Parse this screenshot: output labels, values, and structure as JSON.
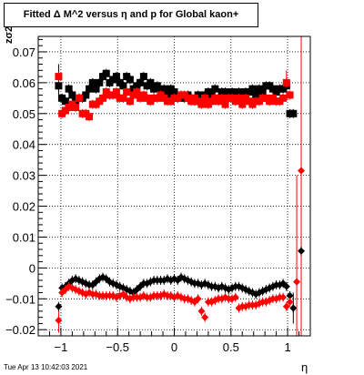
{
  "title": "Fitted Δ M^2 versus η and p for Global kaon+",
  "timestamp": "Tue Apr 13 10:42:03 2021",
  "chart_data": {
    "type": "scatter",
    "title": "Fitted Δ M^2 versus η and p for Global kaon+",
    "xlabel": "η",
    "ylabel": "zσ2",
    "xlim": [
      -1.2,
      1.2
    ],
    "ylim": [
      -0.022,
      0.075
    ],
    "grid": true,
    "xticks": [
      -1,
      -0.5,
      0,
      0.5,
      1
    ],
    "xtick_labels": [
      "−1",
      "−0.5",
      "0",
      "0.5",
      "1"
    ],
    "yticks": [
      -0.02,
      -0.01,
      0,
      0.01,
      0.02,
      0.03,
      0.04,
      0.05,
      0.06,
      0.07
    ],
    "ytick_labels": [
      "−0.02",
      "−0.01",
      "0",
      "0.01",
      "0.02",
      "0.03",
      "0.04",
      "0.05",
      "0.06",
      "0.07"
    ],
    "series": [
      {
        "marker": "square",
        "color": "#000000",
        "points": [
          [
            -1.02,
            0.059
          ],
          [
            -0.99,
            0.055
          ],
          [
            -0.96,
            0.054
          ],
          [
            -0.93,
            0.058
          ],
          [
            -0.9,
            0.056
          ],
          [
            -0.87,
            0.054
          ],
          [
            -0.84,
            0.055
          ],
          [
            -0.81,
            0.055
          ],
          [
            -0.78,
            0.056
          ],
          [
            -0.75,
            0.058
          ],
          [
            -0.72,
            0.06
          ],
          [
            -0.69,
            0.058
          ],
          [
            -0.66,
            0.06
          ],
          [
            -0.63,
            0.062
          ],
          [
            -0.6,
            0.063
          ],
          [
            -0.57,
            0.06
          ],
          [
            -0.54,
            0.061
          ],
          [
            -0.51,
            0.062
          ],
          [
            -0.48,
            0.06
          ],
          [
            -0.45,
            0.059
          ],
          [
            -0.42,
            0.062
          ],
          [
            -0.39,
            0.061
          ],
          [
            -0.36,
            0.058
          ],
          [
            -0.33,
            0.059
          ],
          [
            -0.3,
            0.06
          ],
          [
            -0.27,
            0.062
          ],
          [
            -0.24,
            0.059
          ],
          [
            -0.21,
            0.06
          ],
          [
            -0.18,
            0.058
          ],
          [
            -0.15,
            0.059
          ],
          [
            -0.12,
            0.057
          ],
          [
            -0.09,
            0.058
          ],
          [
            -0.06,
            0.056
          ],
          [
            -0.03,
            0.058
          ],
          [
            0.0,
            0.057
          ],
          [
            0.03,
            0.055
          ],
          [
            0.06,
            0.056
          ],
          [
            0.09,
            0.055
          ],
          [
            0.12,
            0.056
          ],
          [
            0.15,
            0.055
          ],
          [
            0.18,
            0.054
          ],
          [
            0.21,
            0.056
          ],
          [
            0.24,
            0.055
          ],
          [
            0.27,
            0.056
          ],
          [
            0.3,
            0.057
          ],
          [
            0.33,
            0.056
          ],
          [
            0.36,
            0.058
          ],
          [
            0.39,
            0.055
          ],
          [
            0.42,
            0.057
          ],
          [
            0.45,
            0.057
          ],
          [
            0.48,
            0.056
          ],
          [
            0.51,
            0.057
          ],
          [
            0.54,
            0.056
          ],
          [
            0.57,
            0.057
          ],
          [
            0.6,
            0.056
          ],
          [
            0.63,
            0.057
          ],
          [
            0.66,
            0.057
          ],
          [
            0.69,
            0.058
          ],
          [
            0.72,
            0.056
          ],
          [
            0.75,
            0.058
          ],
          [
            0.78,
            0.057
          ],
          [
            0.81,
            0.059
          ],
          [
            0.84,
            0.059
          ],
          [
            0.87,
            0.058
          ],
          [
            0.9,
            0.057
          ],
          [
            0.93,
            0.058
          ],
          [
            0.96,
            0.058
          ],
          [
            0.99,
            0.059
          ],
          [
            1.02,
            0.05
          ],
          [
            1.05,
            0.05
          ]
        ]
      },
      {
        "marker": "square",
        "color": "#ff0000",
        "points": [
          [
            -1.02,
            0.062
          ],
          [
            -0.99,
            0.05
          ],
          [
            -0.96,
            0.051
          ],
          [
            -0.93,
            0.052
          ],
          [
            -0.9,
            0.053
          ],
          [
            -0.87,
            0.052
          ],
          [
            -0.84,
            0.055
          ],
          [
            -0.81,
            0.05
          ],
          [
            -0.78,
            0.05
          ],
          [
            -0.75,
            0.049
          ],
          [
            -0.72,
            0.053
          ],
          [
            -0.69,
            0.053
          ],
          [
            -0.66,
            0.054
          ],
          [
            -0.63,
            0.055
          ],
          [
            -0.6,
            0.057
          ],
          [
            -0.57,
            0.056
          ],
          [
            -0.54,
            0.056
          ],
          [
            -0.51,
            0.057
          ],
          [
            -0.48,
            0.055
          ],
          [
            -0.45,
            0.055
          ],
          [
            -0.42,
            0.057
          ],
          [
            -0.39,
            0.054
          ],
          [
            -0.36,
            0.056
          ],
          [
            -0.33,
            0.057
          ],
          [
            -0.3,
            0.055
          ],
          [
            -0.27,
            0.056
          ],
          [
            -0.24,
            0.055
          ],
          [
            -0.21,
            0.054
          ],
          [
            -0.18,
            0.055
          ],
          [
            -0.15,
            0.055
          ],
          [
            -0.12,
            0.056
          ],
          [
            -0.09,
            0.055
          ],
          [
            -0.06,
            0.054
          ],
          [
            -0.03,
            0.054
          ],
          [
            0.0,
            0.055
          ],
          [
            0.03,
            0.055
          ],
          [
            0.06,
            0.056
          ],
          [
            0.09,
            0.056
          ],
          [
            0.12,
            0.055
          ],
          [
            0.15,
            0.054
          ],
          [
            0.18,
            0.055
          ],
          [
            0.21,
            0.054
          ],
          [
            0.24,
            0.053
          ],
          [
            0.27,
            0.055
          ],
          [
            0.3,
            0.053
          ],
          [
            0.33,
            0.054
          ],
          [
            0.36,
            0.055
          ],
          [
            0.39,
            0.054
          ],
          [
            0.42,
            0.055
          ],
          [
            0.45,
            0.053
          ],
          [
            0.48,
            0.055
          ],
          [
            0.51,
            0.055
          ],
          [
            0.54,
            0.054
          ],
          [
            0.57,
            0.055
          ],
          [
            0.6,
            0.053
          ],
          [
            0.63,
            0.055
          ],
          [
            0.66,
            0.054
          ],
          [
            0.69,
            0.053
          ],
          [
            0.72,
            0.054
          ],
          [
            0.75,
            0.054
          ],
          [
            0.78,
            0.055
          ],
          [
            0.81,
            0.055
          ],
          [
            0.84,
            0.054
          ],
          [
            0.87,
            0.055
          ],
          [
            0.9,
            0.054
          ],
          [
            0.93,
            0.054
          ],
          [
            0.96,
            0.055
          ],
          [
            0.99,
            0.06
          ],
          [
            1.02,
            0.056
          ]
        ]
      },
      {
        "marker": "diamond",
        "color": "#000000",
        "points": [
          [
            -1.02,
            -0.0125
          ],
          [
            -0.99,
            -0.0065
          ],
          [
            -0.96,
            -0.006
          ],
          [
            -0.93,
            -0.005
          ],
          [
            -0.9,
            -0.004
          ],
          [
            -0.87,
            -0.0035
          ],
          [
            -0.84,
            -0.004
          ],
          [
            -0.81,
            -0.0045
          ],
          [
            -0.78,
            -0.005
          ],
          [
            -0.75,
            -0.0055
          ],
          [
            -0.72,
            -0.0055
          ],
          [
            -0.69,
            -0.0045
          ],
          [
            -0.66,
            -0.0035
          ],
          [
            -0.63,
            -0.003
          ],
          [
            -0.6,
            -0.0035
          ],
          [
            -0.57,
            -0.0045
          ],
          [
            -0.54,
            -0.005
          ],
          [
            -0.51,
            -0.0055
          ],
          [
            -0.48,
            -0.006
          ],
          [
            -0.45,
            -0.0065
          ],
          [
            -0.42,
            -0.007
          ],
          [
            -0.39,
            -0.0075
          ],
          [
            -0.36,
            -0.008
          ],
          [
            -0.33,
            -0.007
          ],
          [
            -0.3,
            -0.006
          ],
          [
            -0.27,
            -0.005
          ],
          [
            -0.24,
            -0.005
          ],
          [
            -0.21,
            -0.0045
          ],
          [
            -0.18,
            -0.004
          ],
          [
            -0.15,
            -0.004
          ],
          [
            -0.12,
            -0.004
          ],
          [
            -0.09,
            -0.004
          ],
          [
            -0.06,
            -0.0035
          ],
          [
            -0.03,
            -0.004
          ],
          [
            0.0,
            -0.0035
          ],
          [
            0.03,
            -0.004
          ],
          [
            0.06,
            -0.003
          ],
          [
            0.09,
            -0.0035
          ],
          [
            0.12,
            -0.004
          ],
          [
            0.15,
            -0.0045
          ],
          [
            0.18,
            -0.005
          ],
          [
            0.21,
            -0.005
          ],
          [
            0.24,
            -0.0055
          ],
          [
            0.27,
            -0.005
          ],
          [
            0.3,
            -0.0055
          ],
          [
            0.33,
            -0.006
          ],
          [
            0.36,
            -0.006
          ],
          [
            0.39,
            -0.0065
          ],
          [
            0.42,
            -0.006
          ],
          [
            0.45,
            -0.0065
          ],
          [
            0.48,
            -0.007
          ],
          [
            0.51,
            -0.0065
          ],
          [
            0.54,
            -0.006
          ],
          [
            0.57,
            -0.006
          ],
          [
            0.6,
            -0.0065
          ],
          [
            0.63,
            -0.007
          ],
          [
            0.66,
            -0.0075
          ],
          [
            0.69,
            -0.008
          ],
          [
            0.72,
            -0.0085
          ],
          [
            0.75,
            -0.008
          ],
          [
            0.78,
            -0.0075
          ],
          [
            0.81,
            -0.007
          ],
          [
            0.84,
            -0.0065
          ],
          [
            0.87,
            -0.006
          ],
          [
            0.9,
            -0.0055
          ],
          [
            0.93,
            -0.0055
          ],
          [
            0.96,
            -0.005
          ],
          [
            0.99,
            -0.006
          ],
          [
            1.02,
            -0.009
          ],
          [
            1.05,
            -0.013
          ],
          [
            1.12,
            0.0055
          ]
        ]
      },
      {
        "marker": "diamond",
        "color": "#ff0000",
        "points": [
          [
            -1.02,
            -0.017
          ],
          [
            -0.99,
            -0.008
          ],
          [
            -0.96,
            -0.007
          ],
          [
            -0.93,
            -0.006
          ],
          [
            -0.9,
            -0.0065
          ],
          [
            -0.87,
            -0.007
          ],
          [
            -0.84,
            -0.0075
          ],
          [
            -0.81,
            -0.008
          ],
          [
            -0.78,
            -0.0085
          ],
          [
            -0.75,
            -0.008
          ],
          [
            -0.72,
            -0.0085
          ],
          [
            -0.69,
            -0.0085
          ],
          [
            -0.66,
            -0.009
          ],
          [
            -0.63,
            -0.009
          ],
          [
            -0.6,
            -0.009
          ],
          [
            -0.57,
            -0.009
          ],
          [
            -0.54,
            -0.009
          ],
          [
            -0.51,
            -0.0095
          ],
          [
            -0.48,
            -0.009
          ],
          [
            -0.45,
            -0.0085
          ],
          [
            -0.42,
            -0.0095
          ],
          [
            -0.39,
            -0.01
          ],
          [
            -0.36,
            -0.0095
          ],
          [
            -0.33,
            -0.0095
          ],
          [
            -0.3,
            -0.0095
          ],
          [
            -0.27,
            -0.009
          ],
          [
            -0.24,
            -0.0095
          ],
          [
            -0.21,
            -0.0095
          ],
          [
            -0.18,
            -0.009
          ],
          [
            -0.15,
            -0.009
          ],
          [
            -0.12,
            -0.009
          ],
          [
            -0.09,
            -0.0085
          ],
          [
            -0.06,
            -0.009
          ],
          [
            -0.03,
            -0.009
          ],
          [
            0.0,
            -0.0095
          ],
          [
            0.03,
            -0.009
          ],
          [
            0.06,
            -0.0095
          ],
          [
            0.09,
            -0.01
          ],
          [
            0.12,
            -0.01
          ],
          [
            0.15,
            -0.0105
          ],
          [
            0.18,
            -0.011
          ],
          [
            0.21,
            -0.01
          ],
          [
            0.24,
            -0.014
          ],
          [
            0.27,
            -0.016
          ],
          [
            0.3,
            -0.011
          ],
          [
            0.33,
            -0.011
          ],
          [
            0.36,
            -0.0105
          ],
          [
            0.39,
            -0.01
          ],
          [
            0.42,
            -0.01
          ],
          [
            0.45,
            -0.0095
          ],
          [
            0.48,
            -0.01
          ],
          [
            0.51,
            -0.01
          ],
          [
            0.54,
            -0.0095
          ],
          [
            0.57,
            -0.013
          ],
          [
            0.6,
            -0.0125
          ],
          [
            0.63,
            -0.0125
          ],
          [
            0.66,
            -0.012
          ],
          [
            0.69,
            -0.012
          ],
          [
            0.72,
            -0.012
          ],
          [
            0.75,
            -0.0115
          ],
          [
            0.78,
            -0.011
          ],
          [
            0.81,
            -0.011
          ],
          [
            0.84,
            -0.0105
          ],
          [
            0.87,
            -0.01
          ],
          [
            0.9,
            -0.01
          ],
          [
            0.93,
            -0.0095
          ],
          [
            0.96,
            -0.0095
          ],
          [
            0.99,
            -0.0125
          ],
          [
            1.02,
            -0.011
          ],
          [
            1.08,
            -0.0045
          ],
          [
            1.12,
            0.0315
          ]
        ]
      }
    ],
    "error_bars": [
      {
        "x": 1.08,
        "ylow": -0.022,
        "yhigh": 0.03,
        "color": "#ff0000"
      },
      {
        "x": 1.12,
        "ylow": -0.022,
        "yhigh": 0.075,
        "color": "#ff0000"
      },
      {
        "x": 0.99,
        "ylow": 0.054,
        "yhigh": 0.064,
        "color": "#ff0000"
      },
      {
        "x": -1.02,
        "ylow": 0.054,
        "yhigh": 0.066,
        "color": "#000000"
      },
      {
        "x": 1.05,
        "ylow": -0.018,
        "yhigh": -0.008,
        "color": "#000000"
      },
      {
        "x": -1.02,
        "ylow": -0.021,
        "yhigh": -0.013,
        "color": "#ff0000"
      }
    ]
  }
}
